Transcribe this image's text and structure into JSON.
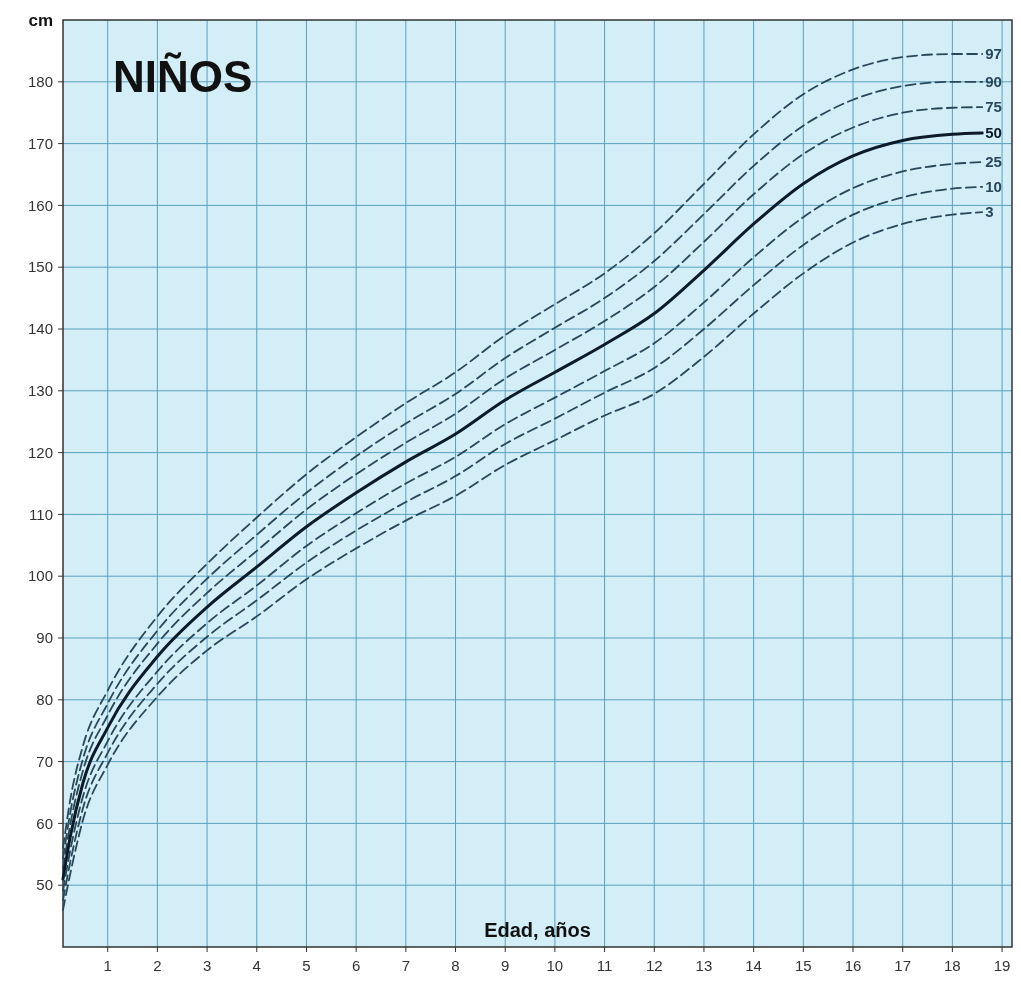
{
  "chart_data": {
    "type": "line",
    "title": "NIÑOS",
    "xlabel": "Edad, años",
    "ylabel": "cm",
    "x": [
      0.1,
      0.25,
      0.5,
      1,
      2,
      3,
      4,
      5,
      6,
      7,
      8,
      9,
      10,
      11,
      12,
      13,
      14,
      15,
      16,
      17,
      18,
      18.6
    ],
    "series": [
      {
        "name": "97",
        "color": "#27475a",
        "line_style": "dashed",
        "values": [
          56,
          64,
          72.5,
          81.5,
          93.5,
          102,
          109.5,
          116.5,
          122.5,
          128,
          133,
          139,
          144,
          149,
          155.5,
          163.5,
          171.5,
          178,
          182,
          184,
          184.5,
          184.5
        ]
      },
      {
        "name": "90",
        "color": "#27475a",
        "line_style": "dashed",
        "values": [
          54.3,
          61.9,
          70.4,
          79.4,
          91.2,
          99.6,
          106.7,
          113.5,
          119.4,
          124.7,
          129.5,
          135.3,
          140.2,
          145,
          151,
          158.6,
          166.4,
          172.9,
          177.1,
          179.3,
          180,
          180
        ]
      },
      {
        "name": "75",
        "color": "#27475a",
        "line_style": "dashed",
        "values": [
          52.7,
          60,
          68.5,
          77.5,
          89.1,
          97.3,
          104.1,
          110.8,
          116.5,
          121.6,
          126.3,
          132,
          136.6,
          141.3,
          146.8,
          154.1,
          161.8,
          168.3,
          172.6,
          175,
          175.8,
          175.9
        ]
      },
      {
        "name": "50",
        "color": "#0d1a2a",
        "line_style": "solid",
        "values": [
          51,
          58,
          66.5,
          75.5,
          87,
          95,
          101.5,
          108,
          113.5,
          118.5,
          123,
          128.5,
          133,
          137.5,
          142.5,
          149.5,
          157,
          163.5,
          168,
          170.5,
          171.5,
          171.7
        ]
      },
      {
        "name": "25",
        "color": "#27475a",
        "line_style": "dashed",
        "values": [
          49.1,
          55.8,
          64.3,
          73.3,
          84.6,
          92.4,
          98.5,
          104.9,
          110.2,
          115,
          119.3,
          124.6,
          128.9,
          133.2,
          137.7,
          144.3,
          151.6,
          158.1,
          162.8,
          165.5,
          166.7,
          167
        ]
      },
      {
        "name": "10",
        "color": "#27475a",
        "line_style": "dashed",
        "values": [
          47.6,
          53.9,
          62.4,
          71.4,
          82.6,
          90.2,
          96.1,
          102.2,
          107.4,
          112,
          116.2,
          121.4,
          125.5,
          129.7,
          133.7,
          140,
          147.1,
          153.6,
          158.5,
          161.3,
          162.7,
          163
        ]
      },
      {
        "name": "3",
        "color": "#27475a",
        "line_style": "dashed",
        "values": [
          46,
          52,
          60.5,
          69.5,
          80.5,
          88,
          93.5,
          99.5,
          104.5,
          109,
          113,
          118,
          122,
          126,
          129.5,
          135.5,
          142.5,
          149,
          154,
          157,
          158.5,
          158.9
        ]
      }
    ],
    "xlim": [
      0.1,
      19.2
    ],
    "xticks": [
      1,
      2,
      3,
      4,
      5,
      6,
      7,
      8,
      9,
      10,
      11,
      12,
      13,
      14,
      15,
      16,
      17,
      18,
      19
    ],
    "ylim": [
      40,
      190
    ],
    "yticks": [
      50,
      60,
      70,
      80,
      90,
      100,
      110,
      120,
      130,
      140,
      150,
      160,
      170,
      180
    ],
    "grid": true
  }
}
